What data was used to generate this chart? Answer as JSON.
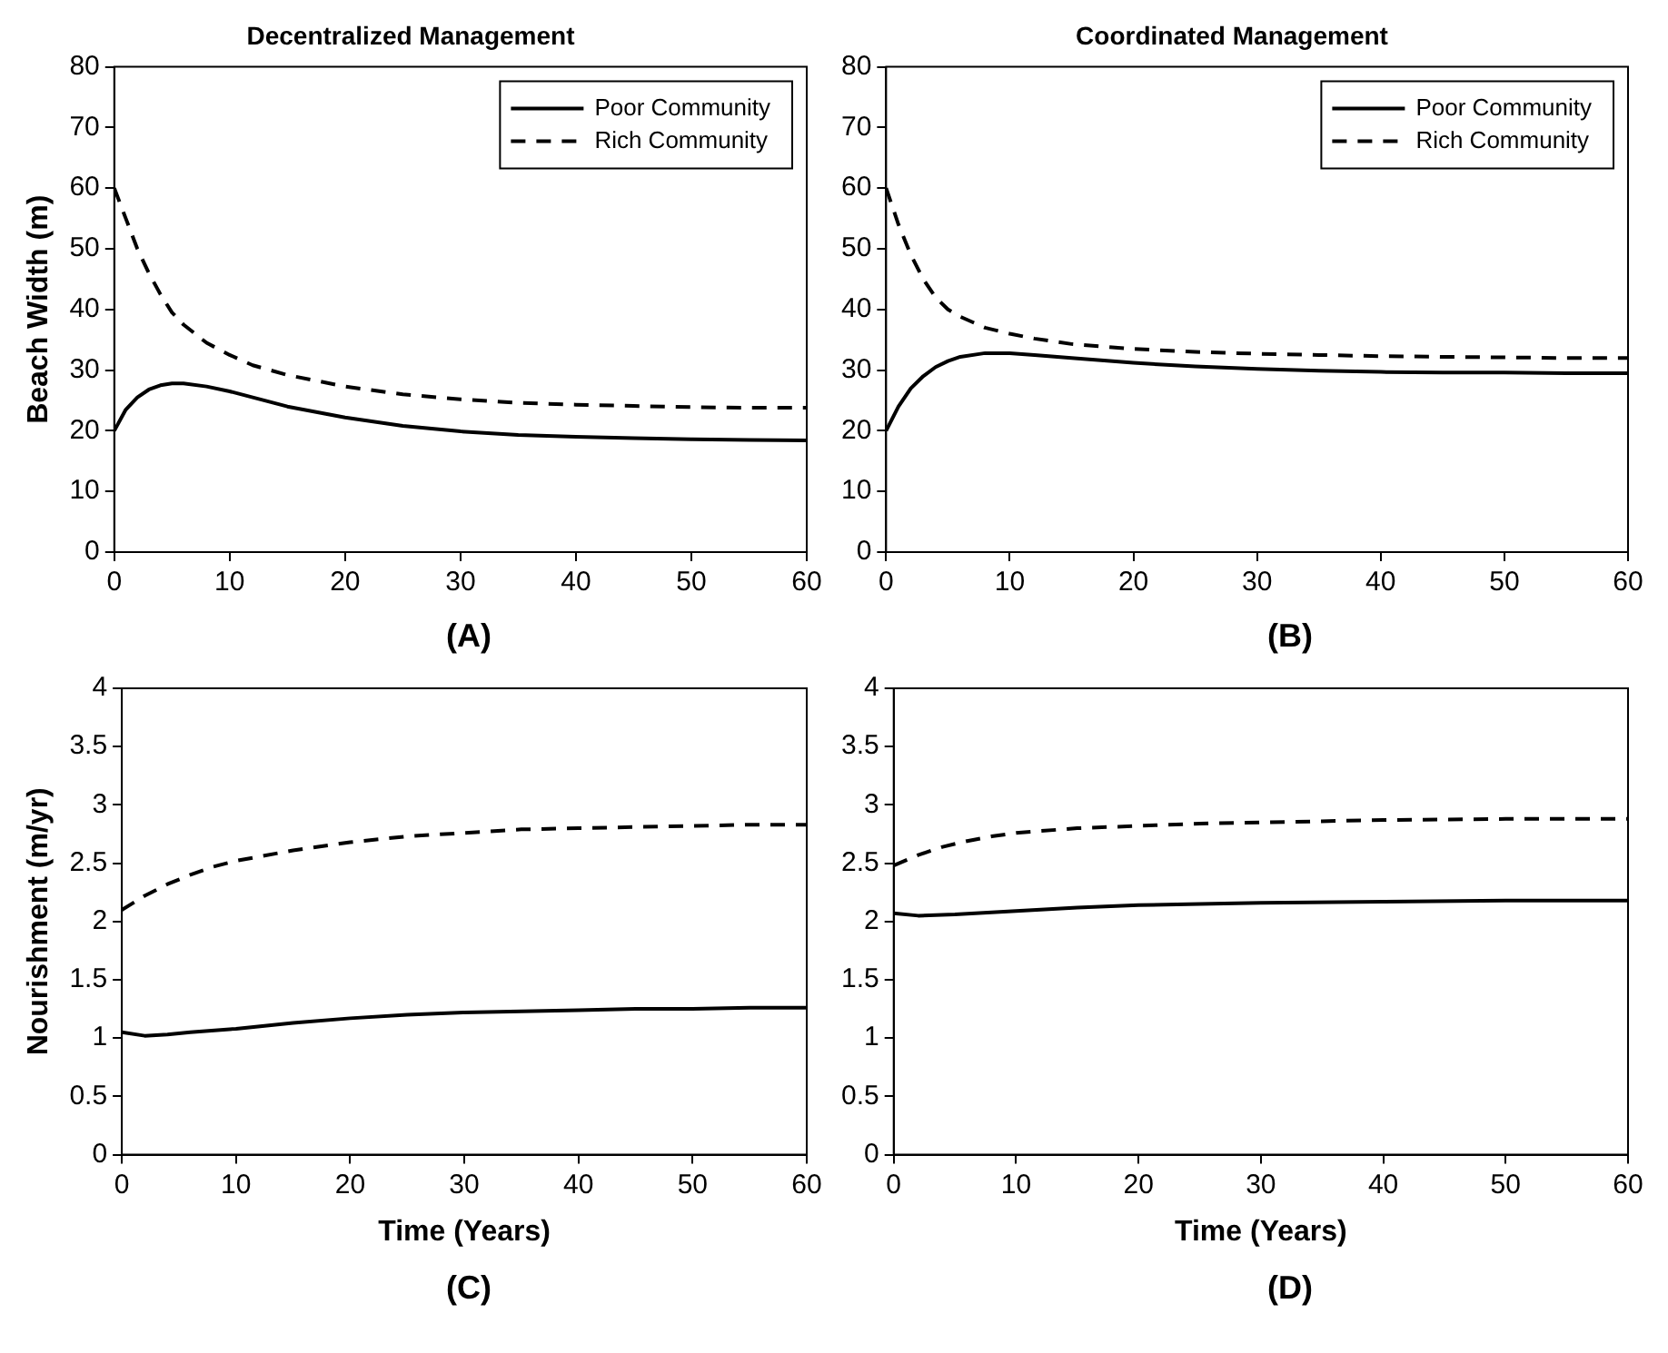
{
  "chart_data": [
    {
      "type": "line",
      "title": "Decentralized Management",
      "ylabel": "Beach Width (m)",
      "annotations": [
        "(A)"
      ],
      "xlim": [
        0,
        60
      ],
      "xticks": [
        0,
        10,
        20,
        30,
        40,
        50,
        60
      ],
      "ylim": [
        0,
        80
      ],
      "yticks": [
        0,
        10,
        20,
        30,
        40,
        50,
        60,
        70,
        80
      ],
      "grid": false,
      "legend": "top right",
      "series": [
        {
          "name": "Poor Community",
          "color": "#000000",
          "line_style": "solid",
          "x": [
            0,
            1,
            2,
            3,
            4,
            5,
            6,
            8,
            10,
            12,
            15,
            20,
            25,
            30,
            35,
            40,
            45,
            50,
            55,
            60
          ],
          "values": [
            20,
            23.5,
            25.5,
            26.8,
            27.5,
            27.8,
            27.8,
            27.3,
            26.5,
            25.5,
            24,
            22.2,
            20.8,
            19.9,
            19.3,
            19,
            18.8,
            18.6,
            18.5,
            18.4
          ]
        },
        {
          "name": "Rich Community",
          "color": "#000000",
          "line_style": "dashed",
          "x": [
            0,
            1,
            2,
            3,
            4,
            5,
            6,
            8,
            10,
            12,
            15,
            20,
            25,
            30,
            35,
            40,
            45,
            50,
            55,
            60
          ],
          "values": [
            60,
            55,
            50,
            46,
            42.5,
            39.5,
            37.5,
            34.5,
            32.5,
            30.8,
            29.2,
            27.3,
            26,
            25.2,
            24.6,
            24.3,
            24.1,
            23.9,
            23.8,
            23.8
          ]
        }
      ]
    },
    {
      "type": "line",
      "title": "Coordinated Management",
      "annotations": [
        "(B)"
      ],
      "xlim": [
        0,
        60
      ],
      "xticks": [
        0,
        10,
        20,
        30,
        40,
        50,
        60
      ],
      "ylim": [
        0,
        80
      ],
      "yticks": [
        0,
        10,
        20,
        30,
        40,
        50,
        60,
        70,
        80
      ],
      "grid": false,
      "legend": "top right",
      "series": [
        {
          "name": "Poor Community",
          "color": "#000000",
          "line_style": "solid",
          "x": [
            0,
            1,
            2,
            3,
            4,
            5,
            6,
            8,
            10,
            12,
            15,
            20,
            25,
            30,
            35,
            40,
            45,
            50,
            55,
            60
          ],
          "values": [
            20,
            24,
            27,
            29,
            30.5,
            31.5,
            32.2,
            32.8,
            32.8,
            32.5,
            32,
            31.2,
            30.6,
            30.2,
            29.9,
            29.7,
            29.6,
            29.6,
            29.5,
            29.5
          ]
        },
        {
          "name": "Rich Community",
          "color": "#000000",
          "line_style": "dashed",
          "x": [
            0,
            1,
            2,
            3,
            4,
            5,
            6,
            8,
            10,
            12,
            15,
            20,
            25,
            30,
            35,
            40,
            45,
            50,
            55,
            60
          ],
          "values": [
            60,
            54,
            49,
            45,
            42,
            40,
            38.8,
            37,
            36,
            35.2,
            34.3,
            33.5,
            33,
            32.7,
            32.5,
            32.3,
            32.2,
            32.1,
            32,
            32
          ]
        }
      ]
    },
    {
      "type": "line",
      "xlabel": "Time (Years)",
      "ylabel": "Nourishment (m/yr)",
      "annotations": [
        "(C)"
      ],
      "xlim": [
        0,
        60
      ],
      "xticks": [
        0,
        10,
        20,
        30,
        40,
        50,
        60
      ],
      "ylim": [
        0,
        4
      ],
      "yticks": [
        0,
        0.5,
        1,
        1.5,
        2,
        2.5,
        3,
        3.5,
        4
      ],
      "grid": false,
      "series": [
        {
          "color": "#000000",
          "line_style": "solid",
          "x": [
            0,
            2,
            4,
            6,
            10,
            15,
            20,
            25,
            30,
            35,
            40,
            45,
            50,
            55,
            60
          ],
          "values": [
            1.05,
            1.02,
            1.03,
            1.05,
            1.08,
            1.13,
            1.17,
            1.2,
            1.22,
            1.23,
            1.24,
            1.25,
            1.25,
            1.26,
            1.26
          ]
        },
        {
          "color": "#000000",
          "line_style": "dashed",
          "x": [
            0,
            2,
            4,
            6,
            8,
            10,
            15,
            20,
            25,
            30,
            35,
            40,
            45,
            50,
            55,
            60
          ],
          "values": [
            2.1,
            2.22,
            2.32,
            2.4,
            2.47,
            2.52,
            2.61,
            2.68,
            2.73,
            2.76,
            2.79,
            2.8,
            2.81,
            2.82,
            2.83,
            2.83
          ]
        }
      ]
    },
    {
      "type": "line",
      "xlabel": "Time (Years)",
      "annotations": [
        "(D)"
      ],
      "xlim": [
        0,
        60
      ],
      "xticks": [
        0,
        10,
        20,
        30,
        40,
        50,
        60
      ],
      "ylim": [
        0,
        4
      ],
      "yticks": [
        0,
        0.5,
        1,
        1.5,
        2,
        2.5,
        3,
        3.5,
        4
      ],
      "grid": false,
      "series": [
        {
          "color": "#000000",
          "line_style": "solid",
          "x": [
            0,
            2,
            5,
            10,
            15,
            20,
            25,
            30,
            40,
            50,
            60
          ],
          "values": [
            2.07,
            2.05,
            2.06,
            2.09,
            2.12,
            2.14,
            2.15,
            2.16,
            2.17,
            2.18,
            2.18
          ]
        },
        {
          "color": "#000000",
          "line_style": "dashed",
          "x": [
            0,
            2,
            4,
            6,
            8,
            10,
            15,
            20,
            25,
            30,
            40,
            50,
            60
          ],
          "values": [
            2.48,
            2.57,
            2.64,
            2.69,
            2.73,
            2.76,
            2.8,
            2.82,
            2.84,
            2.85,
            2.87,
            2.88,
            2.88
          ]
        }
      ]
    }
  ]
}
